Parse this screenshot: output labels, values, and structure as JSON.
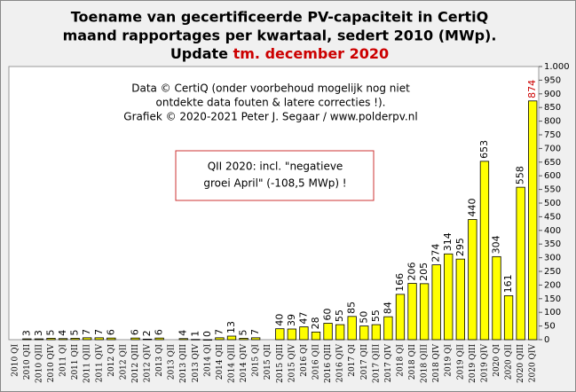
{
  "chart_data": {
    "type": "bar",
    "title": [
      "Toename van gecertificeerde PV-capaciteit in CertiQ",
      "maand rapportages per kwartaal, sedert 2010 (MWp)."
    ],
    "update_label": "Update",
    "update_value": "tm. december 2020",
    "annotations": [
      "Data © CertiQ (onder voorbehoud mogelijk  nog niet",
      "ontdekte data fouten & latere correcties !).",
      "Grafiek  © 2020-2021 Peter J. Segaar / www.polderpv.nl"
    ],
    "box_note": [
      "QII 2020: incl. \"negatieve",
      "groei April\"  (-108,5 MWp) !"
    ],
    "categories": [
      "2010 QI",
      "2010 QII",
      "2010 QIII",
      "2010 QIV",
      "2011 QI",
      "2011 QII",
      "2011 QIII",
      "2011 QIV",
      "2012 QI",
      "2012 QII",
      "2012 QIII",
      "2012 QIV",
      "2013 QI",
      "2013 QII",
      "2013 QIII",
      "2013 QIV",
      "2014 QI",
      "2014 QII",
      "2014 QIII",
      "2014 QIV",
      "2015 QI",
      "2015 QII",
      "2015 QIII",
      "2015 QIV",
      "2016 QI",
      "2016 QII",
      "2016 QIII",
      "2016 QIV",
      "2017 QI",
      "2017 QII",
      "2017 QIII",
      "2017 QIV",
      "2018 QI",
      "2018 QII",
      "2018 QIII",
      "2018 QIV",
      "2019 QI",
      "2019 QII",
      "2019 QIII",
      "2019 QIV",
      "2020 QI",
      "2020 QII",
      "2020 QIII",
      "2020 QIV"
    ],
    "values": [
      null,
      3,
      3,
      5,
      4,
      5,
      7,
      7,
      6,
      null,
      6,
      2,
      6,
      null,
      4,
      1,
      0,
      7,
      13,
      5,
      7,
      null,
      40,
      39,
      47,
      28,
      60,
      55,
      85,
      50,
      55,
      84,
      166,
      206,
      205,
      274,
      314,
      295,
      440,
      653,
      304,
      161,
      558,
      874
    ],
    "color": "#ffff00",
    "last_label_color": "#cc0000",
    "ylim": [
      0,
      1000
    ],
    "yticks": [
      0,
      50,
      100,
      150,
      200,
      250,
      300,
      350,
      400,
      450,
      500,
      550,
      600,
      650,
      700,
      750,
      800,
      850,
      900,
      950,
      {
        "value": 1000,
        "label": "1.000"
      }
    ]
  }
}
